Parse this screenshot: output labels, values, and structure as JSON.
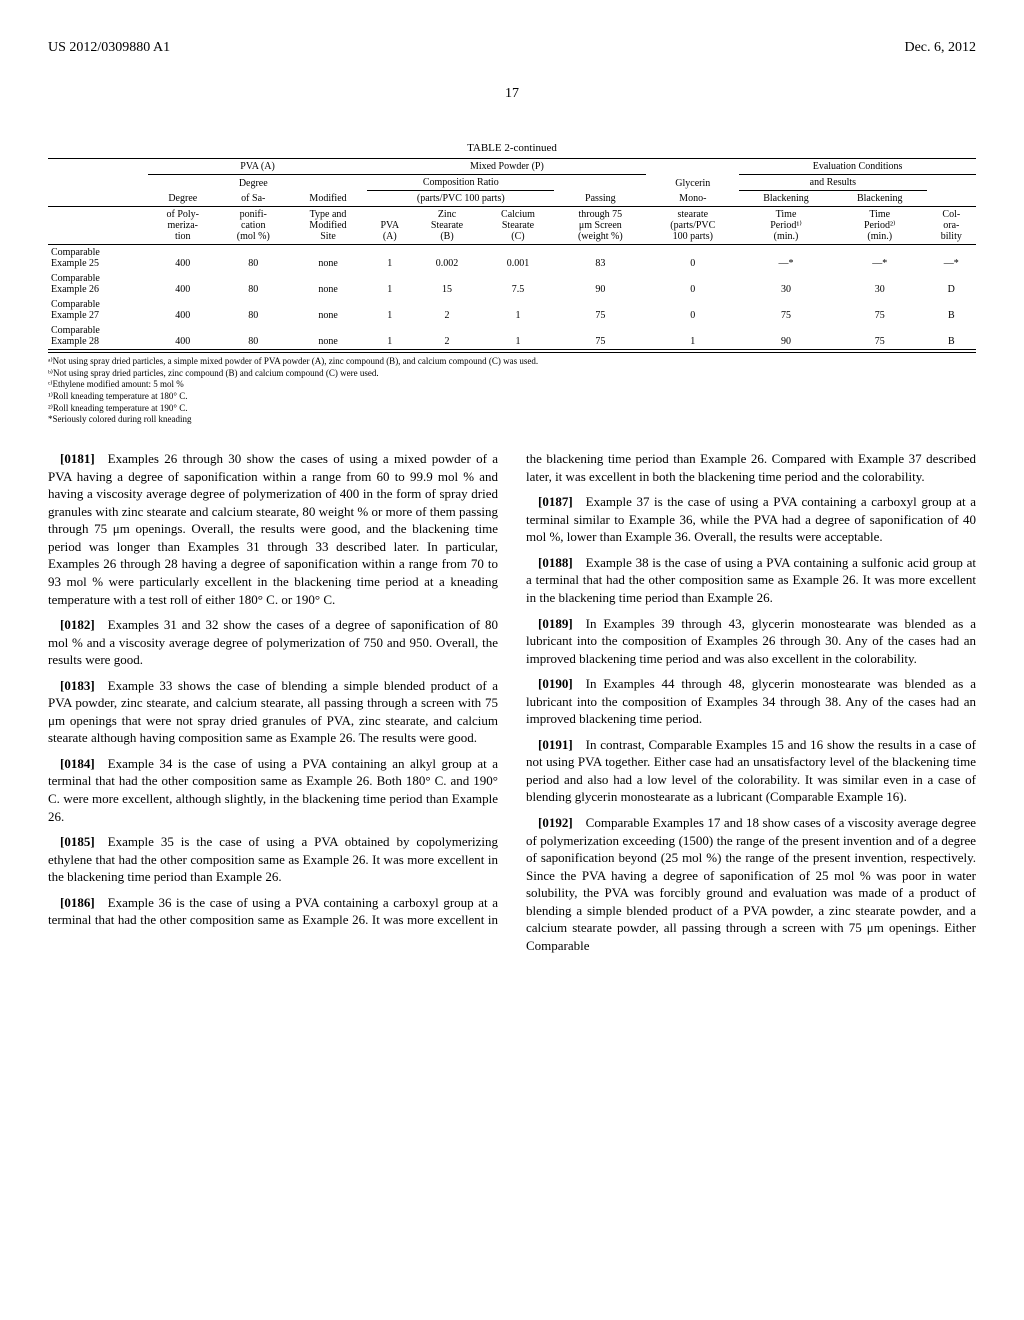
{
  "header": {
    "docnum": "US 2012/0309880 A1",
    "date": "Dec. 6, 2012",
    "pagenum": "17"
  },
  "table": {
    "caption": "TABLE 2-continued",
    "group_headers": {
      "pva": "PVA (A)",
      "mixed": "Mixed Powder (P)",
      "eval": "Evaluation Conditions"
    },
    "sub1": {
      "degree_group": "Degree",
      "comp_ratio": "Composition Ratio",
      "glycerin": "Glycerin",
      "and_results": "and Results"
    },
    "sub2": {
      "degree_poly": "Degree",
      "degree_sap": "of Sa-",
      "modified": "Modified",
      "parts": "(parts/PVC 100 parts)",
      "passing": "Passing",
      "mono": "Mono-",
      "blk1": "Blackening",
      "blk2": "Blackening"
    },
    "cols": [
      "",
      "of Poly-\nmeriza-\ntion",
      "ponifi-\ncation\n(mol %)",
      "Type and\nModified\nSite",
      "PVA\n(A)",
      "Zinc\nStearate\n(B)",
      "Calcium\nStearate\n(C)",
      "through 75\nμm Screen\n(weight %)",
      "stearate\n(parts/PVC\n100 parts)",
      "Time\nPeriod¹⁾\n(min.)",
      "Time\nPeriod²⁾\n(min.)",
      "Col-\nora-\nbility"
    ],
    "rows": [
      [
        "Comparable\nExample 25",
        "400",
        "80",
        "none",
        "1",
        "0.002",
        "0.001",
        "83",
        "0",
        "—*",
        "—*",
        "—*"
      ],
      [
        "Comparable\nExample 26",
        "400",
        "80",
        "none",
        "1",
        "15",
        "7.5",
        "90",
        "0",
        "30",
        "30",
        "D"
      ],
      [
        "Comparable\nExample 27",
        "400",
        "80",
        "none",
        "1",
        "2",
        "1",
        "75",
        "0",
        "75",
        "75",
        "B"
      ],
      [
        "Comparable\nExample 28",
        "400",
        "80",
        "none",
        "1",
        "2",
        "1",
        "75",
        "1",
        "90",
        "75",
        "B"
      ]
    ],
    "footnotes": [
      "ᵃ⁾Not using spray dried particles, a simple mixed powder of PVA powder (A), zinc compound (B), and calcium compound (C) was used.",
      "ᵇ⁾Not using spray dried particles, zinc compound (B) and calcium compound (C) were used.",
      "ᶜ⁾Ethylene modified amount: 5 mol %",
      "¹⁾Roll kneading temperature at 180° C.",
      "²⁾Roll kneading temperature at 190° C.",
      "*Seriously colored during roll kneading"
    ]
  },
  "paras": [
    {
      "num": "[0181]",
      "text": "Examples 26 through 30 show the cases of using a mixed powder of a PVA having a degree of saponification within a range from 60 to 99.9 mol % and having a viscosity average degree of polymerization of 400 in the form of spray dried granules with zinc stearate and calcium stearate, 80 weight % or more of them passing through 75 μm openings. Overall, the results were good, and the blackening time period was longer than Examples 31 through 33 described later. In particular, Examples 26 through 28 having a degree of saponification within a range from 70 to 93 mol % were particularly excellent in the blackening time period at a kneading temperature with a test roll of either 180° C. or 190° C."
    },
    {
      "num": "[0182]",
      "text": "Examples 31 and 32 show the cases of a degree of saponification of 80 mol % and a viscosity average degree of polymerization of 750 and 950. Overall, the results were good."
    },
    {
      "num": "[0183]",
      "text": "Example 33 shows the case of blending a simple blended product of a PVA powder, zinc stearate, and calcium stearate, all passing through a screen with 75 μm openings that were not spray dried granules of PVA, zinc stearate, and calcium stearate although having composition same as Example 26. The results were good."
    },
    {
      "num": "[0184]",
      "text": "Example 34 is the case of using a PVA containing an alkyl group at a terminal that had the other composition same as Example 26. Both 180° C. and 190° C. were more excellent, although slightly, in the blackening time period than Example 26."
    },
    {
      "num": "[0185]",
      "text": "Example 35 is the case of using a PVA obtained by copolymerizing ethylene that had the other composition same as Example 26. It was more excellent in the blackening time period than Example 26."
    },
    {
      "num": "[0186]",
      "text": "Example 36 is the case of using a PVA containing a carboxyl group at a terminal that had the other composition same as Example 26. It was more excellent in the blackening time period than Example 26. Compared with Example 37 described later, it was excellent in both the blackening time period and the colorability."
    },
    {
      "num": "[0187]",
      "text": "Example 37 is the case of using a PVA containing a carboxyl group at a terminal similar to Example 36, while the PVA had a degree of saponification of 40 mol %, lower than Example 36. Overall, the results were acceptable."
    },
    {
      "num": "[0188]",
      "text": "Example 38 is the case of using a PVA containing a sulfonic acid group at a terminal that had the other composition same as Example 26. It was more excellent in the blackening time period than Example 26."
    },
    {
      "num": "[0189]",
      "text": "In Examples 39 through 43, glycerin monostearate was blended as a lubricant into the composition of Examples 26 through 30. Any of the cases had an improved blackening time period and was also excellent in the colorability."
    },
    {
      "num": "[0190]",
      "text": "In Examples 44 through 48, glycerin monostearate was blended as a lubricant into the composition of Examples 34 through 38. Any of the cases had an improved blackening time period."
    },
    {
      "num": "[0191]",
      "text": "In contrast, Comparable Examples 15 and 16 show the results in a case of not using PVA together. Either case had an unsatisfactory level of the blackening time period and also had a low level of the colorability. It was similar even in a case of blending glycerin monostearate as a lubricant (Comparable Example 16)."
    },
    {
      "num": "[0192]",
      "text": "Comparable Examples 17 and 18 show cases of a viscosity average degree of polymerization exceeding (1500) the range of the present invention and of a degree of saponification beyond (25 mol %) the range of the present invention, respectively. Since the PVA having a degree of saponification of 25 mol % was poor in water solubility, the PVA was forcibly ground and evaluation was made of a product of blending a simple blended product of a PVA powder, a zinc stearate powder, and a calcium stearate powder, all passing through a screen with 75 μm openings. Either Comparable"
    }
  ]
}
